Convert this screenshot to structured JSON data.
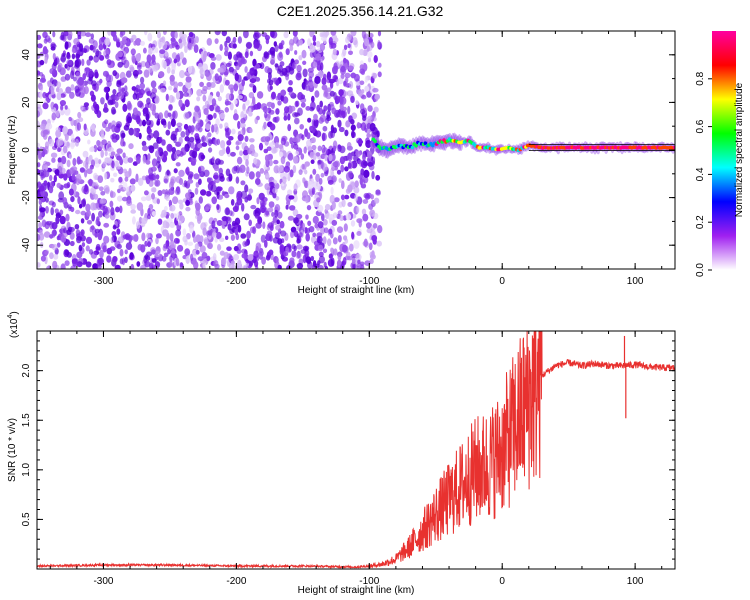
{
  "title": "C2E1.2025.356.14.21.G32",
  "chart_data": [
    {
      "type": "heatmap",
      "name": "spectrogram",
      "xlabel": "Height of straight line (km)",
      "ylabel": "Frequency (Hz)",
      "xlim": [
        -350,
        130
      ],
      "ylim": [
        -50,
        50
      ],
      "xticks": [
        -300,
        -200,
        -100,
        0,
        100
      ],
      "yticks": [
        -40,
        -20,
        0,
        20,
        40
      ],
      "noise_region": {
        "x_range": [
          -350,
          -92
        ],
        "y_range": [
          -50,
          50
        ],
        "note": "diffuse purple speckle"
      },
      "signal_track": {
        "x": [
          -97,
          -92,
          -85,
          -78,
          -70,
          -62,
          -55,
          -48,
          -40,
          -32,
          -25,
          -18,
          -10,
          -3,
          5,
          12,
          20,
          30,
          40,
          60,
          80,
          95,
          110,
          130
        ],
        "y": [
          4,
          1,
          0,
          2,
          1,
          3,
          2,
          3,
          4,
          3,
          4,
          1,
          1,
          0,
          1,
          0,
          2,
          1,
          1,
          1,
          1,
          1,
          1,
          1
        ]
      },
      "colorbar": {
        "label": "Normalized spectral amplitude",
        "range": [
          0,
          1
        ],
        "ticks": [
          "0.0",
          "0.2",
          "0.4",
          "0.6",
          "0.8"
        ],
        "colors": [
          "#ffffff",
          "#a020f0",
          "#0000ff",
          "#00ffff",
          "#00ff00",
          "#ffff00",
          "#ff0000",
          "#ff00a0"
        ]
      }
    },
    {
      "type": "line",
      "name": "snr",
      "xlabel": "Height of straight line (km)",
      "ylabel": "SNR (10 * v/v)",
      "multiplier_label": "(x10",
      "multiplier_exp": "4",
      "multiplier_close": ")",
      "xlim": [
        -350,
        130
      ],
      "ylim": [
        0,
        2.4
      ],
      "xticks": [
        -300,
        -200,
        -100,
        0,
        100
      ],
      "yticks": [
        0.5,
        1.0,
        1.5,
        2.0
      ],
      "ytick_labels": [
        "0.5",
        "1.0",
        "1.5",
        "2.0"
      ],
      "color": "#e8312f",
      "series": [
        {
          "name": "SNR trend",
          "x": [
            -350,
            -300,
            -250,
            -200,
            -150,
            -110,
            -100,
            -90,
            -80,
            -70,
            -60,
            -50,
            -40,
            -30,
            -20,
            -10,
            0,
            10,
            20,
            30,
            40,
            50,
            60,
            70,
            80,
            90,
            100,
            110,
            120,
            130
          ],
          "y": [
            0.03,
            0.04,
            0.04,
            0.03,
            0.03,
            0.02,
            0.03,
            0.05,
            0.1,
            0.22,
            0.38,
            0.55,
            0.7,
            0.85,
            1.0,
            1.05,
            1.2,
            1.45,
            1.7,
            1.95,
            2.05,
            2.08,
            2.05,
            2.07,
            2.05,
            2.05,
            2.06,
            2.04,
            2.03,
            2.03
          ]
        }
      ],
      "spikes": [
        {
          "x": 92,
          "y": 2.35
        },
        {
          "x": 93,
          "y": 1.52
        }
      ]
    }
  ]
}
